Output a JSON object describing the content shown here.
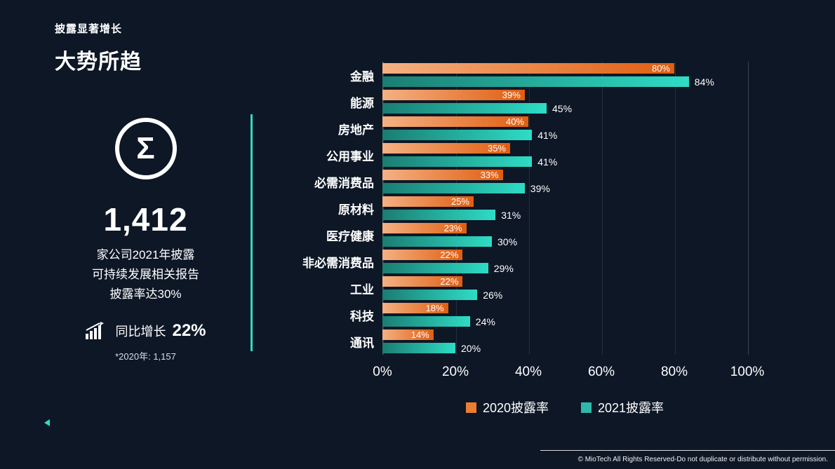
{
  "header": {
    "subtitle": "披露显著增长",
    "title": "大势所趋"
  },
  "stats": {
    "sigma_glyph": "Σ",
    "big_number": "1,412",
    "lines": [
      "家公司2021年披露",
      "可持续发展相关报告",
      "披露率达30%"
    ],
    "growth_label": "同比增长",
    "growth_value": "22%",
    "footnote": "*2020年: 1,157"
  },
  "accent_color": "#2EDCC5",
  "background_color": "#0D1726",
  "chart_data": {
    "type": "bar",
    "orientation": "horizontal",
    "categories": [
      "金融",
      "能源",
      "房地产",
      "公用事业",
      "必需消费品",
      "原材料",
      "医疗健康",
      "非必需消费品",
      "工业",
      "科技",
      "通讯"
    ],
    "series": [
      {
        "name": "2020披露率",
        "values": [
          80,
          39,
          40,
          35,
          33,
          25,
          23,
          22,
          22,
          18,
          14
        ],
        "color_start": "#F4B183",
        "color_end": "#E05E10",
        "legend_color": "#ED7D31",
        "label_position": "inside"
      },
      {
        "name": "2021披露率",
        "values": [
          84,
          45,
          41,
          41,
          39,
          31,
          30,
          29,
          26,
          24,
          20
        ],
        "color_start": "#1B7D72",
        "color_end": "#2EDCC5",
        "legend_color": "#2EB9A9",
        "label_position": "outside"
      }
    ],
    "x_ticks": [
      "0%",
      "20%",
      "40%",
      "60%",
      "80%",
      "100%"
    ],
    "xlim": [
      0,
      100
    ],
    "value_suffix": "%",
    "grid": true,
    "legend_position": "bottom"
  },
  "footer": {
    "copyright": "© MioTech All Rights Reserved-Do not duplicate or distribute without permission."
  }
}
